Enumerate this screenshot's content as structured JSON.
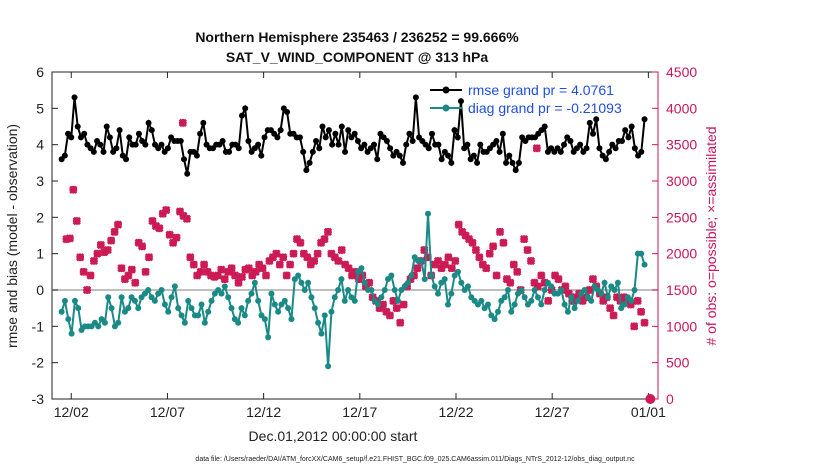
{
  "chart_data": {
    "type": "line",
    "title": "Northern Hemisphere 235463 / 236252 = 99.666%",
    "subtitle": "SAT_V_WIND_COMPONENT @ 313 hPa",
    "xlabel": "Dec.01,2012 00:00:00 start",
    "ylabel": "rmse and bias (model - observation)",
    "ylabel_right": "# of obs: o=possible; ×=assimilated",
    "xlim": [
      0,
      31.5
    ],
    "ylim": [
      -3,
      6
    ],
    "ylim_right": [
      0,
      4500
    ],
    "x_ticks": [
      1,
      6,
      11,
      16,
      21,
      26,
      31
    ],
    "x_tick_labels": [
      "12/02",
      "12/07",
      "12/12",
      "12/17",
      "12/22",
      "12/27",
      "01/01"
    ],
    "y_ticks": [
      -3,
      -2,
      -1,
      0,
      1,
      2,
      3,
      4,
      5,
      6
    ],
    "y_ticks_right": [
      0,
      500,
      1000,
      1500,
      2000,
      2500,
      3000,
      3500,
      4000,
      4500
    ],
    "legend": {
      "position": "top-right",
      "rmse_label": "rmse grand pr = 4.0761",
      "bias_label": "diag grand pr = -0.21093"
    },
    "footer": "data file: /Users/raeder/DAI/ATM_forcXX/CAM6_setup/f.e21.FHIST_BGC.f09_025.CAM6assim.011/Diags_NTrS_2012-12/obs_diag_output.nc",
    "series": [
      {
        "name": "rmse",
        "color": "#000000",
        "values": [
          3.6,
          3.7,
          4.3,
          4.2,
          5.3,
          4.5,
          4.2,
          4.3,
          4.0,
          3.9,
          3.8,
          4.1,
          4.0,
          3.8,
          4.5,
          4.2,
          3.8,
          3.9,
          4.4,
          3.7,
          3.6,
          4.2,
          4.0,
          4.0,
          4.3,
          4.1,
          4.0,
          4.6,
          4.4,
          4.0,
          3.9,
          4.0,
          3.8,
          3.9,
          4.2,
          4.1,
          4.1,
          4.1,
          3.6,
          3.2,
          3.8,
          3.8,
          3.7,
          4.3,
          4.6,
          4.0,
          3.9,
          3.9,
          4.0,
          4.0,
          4.1,
          3.8,
          3.8,
          4.0,
          4.0,
          3.9,
          4.8,
          5.0,
          4.1,
          3.8,
          3.9,
          4.0,
          3.7,
          4.2,
          4.4,
          4.4,
          4.3,
          4.2,
          4.4,
          5.0,
          4.9,
          4.3,
          4.3,
          4.2,
          4.2,
          3.8,
          3.3,
          3.5,
          3.8,
          4.1,
          3.9,
          4.5,
          4.2,
          4.4,
          4.0,
          4.3,
          4.0,
          4.5,
          3.8,
          4.4,
          4.2,
          4.3,
          4.1,
          3.9,
          4.0,
          3.8,
          3.9,
          4.0,
          3.6,
          4.3,
          4.2,
          4.1,
          3.9,
          3.7,
          3.8,
          3.7,
          3.5,
          4.0,
          4.3,
          4.1,
          5.3,
          4.2,
          4.1,
          4.0,
          3.9,
          4.3,
          4.0,
          4.0,
          3.6,
          3.8,
          3.7,
          3.5,
          4.4,
          4.2,
          5.2,
          3.9,
          4.0,
          3.6,
          3.7,
          3.5,
          4.0,
          3.8,
          3.8,
          3.9,
          4.0,
          4.1,
          3.8,
          4.3,
          3.5,
          3.7,
          3.5,
          3.3,
          3.5,
          4.2,
          4.1,
          4.2,
          4.2,
          4.2,
          4.3,
          4.4,
          4.5,
          3.8,
          3.9,
          3.8,
          3.9,
          3.8,
          4.0,
          4.2,
          4.1,
          3.8,
          3.9,
          4.0,
          3.8,
          3.9,
          4.6,
          4.3,
          4.7,
          3.9,
          3.7,
          3.6,
          3.8,
          4.0,
          3.9,
          4.1,
          4.1,
          4.4,
          4.2,
          4.5,
          3.9,
          3.7,
          3.8,
          4.7
        ],
        "comment": "values sampled every 6 hours starting near 12/01 12Z"
      },
      {
        "name": "bias",
        "color": "#1a8a86",
        "values": [
          -0.6,
          -0.3,
          -0.8,
          -1.2,
          -0.3,
          -0.5,
          -1.1,
          -1.0,
          -1.0,
          -1.0,
          -0.9,
          -1.0,
          -0.8,
          -0.9,
          -0.2,
          -0.5,
          -1.0,
          -0.9,
          -0.2,
          -0.6,
          -0.5,
          -0.2,
          -0.3,
          -0.5,
          -0.2,
          -0.1,
          0.0,
          -0.2,
          -0.3,
          -0.1,
          0.0,
          -0.4,
          -0.6,
          -0.2,
          0.1,
          -0.5,
          -0.7,
          -0.9,
          -0.3,
          -0.5,
          -0.7,
          -0.7,
          -0.4,
          -0.9,
          -0.6,
          -0.3,
          -0.1,
          0.0,
          -0.1,
          0.1,
          -0.2,
          -0.5,
          -0.8,
          -0.9,
          -0.5,
          -0.7,
          -0.3,
          -0.1,
          0.2,
          -0.3,
          -0.7,
          -0.8,
          -1.3,
          -0.1,
          -0.4,
          -0.6,
          -0.4,
          -0.3,
          -0.5,
          -0.8,
          0.3,
          0.4,
          0.2,
          0.0,
          0.2,
          -0.2,
          -0.5,
          -0.9,
          -1.2,
          -0.7,
          -2.1,
          -0.6,
          -0.2,
          0.0,
          0.3,
          -0.3,
          0.0,
          -0.2,
          -0.3,
          0.5,
          0.6,
          0.2,
          0.0,
          0.0,
          -0.3,
          -0.4,
          -0.2,
          0.0,
          0.3,
          0.4,
          0.0,
          -0.3,
          0.0,
          0.1,
          0.2,
          0.4,
          0.9,
          0.8,
          0.8,
          0.3,
          2.1,
          0.4,
          0.1,
          -0.1,
          0.2,
          0.3,
          -0.4,
          -0.1,
          0.4,
          0.5,
          0.2,
          0.0,
          0.1,
          -0.2,
          -0.3,
          -0.4,
          -0.3,
          -0.5,
          -0.4,
          -0.7,
          -0.8,
          -0.6,
          -0.3,
          -0.2,
          0.0,
          -0.6,
          -0.4,
          -0.1,
          0.0,
          -0.2,
          -0.4,
          -0.3,
          0.0,
          -0.2,
          -0.4,
          0.0,
          0.2,
          0.1,
          -0.1,
          -0.1,
          0.0,
          -0.4,
          -0.6,
          -0.2,
          -0.5,
          -0.3,
          -0.1,
          0.0,
          -0.2,
          -0.3,
          0.1,
          0.0,
          -0.1,
          0.2,
          -0.2,
          0.1,
          0.0,
          0.2,
          -0.5,
          -0.4,
          -0.2,
          -0.3,
          0.0,
          1.0,
          1.0,
          0.7
        ]
      },
      {
        "name": "assimilated obs count",
        "color": "#cc1a55",
        "marker": "x",
        "x_start": 0.75,
        "values": [
          2200,
          2210,
          2880,
          2450,
          1950,
          1750,
          1500,
          1700,
          1900,
          2000,
          2120,
          2020,
          2050,
          2180,
          2300,
          2400,
          1800,
          1650,
          1700,
          1780,
          1600,
          2150,
          2100,
          1750,
          1950,
          2450,
          2380,
          2350,
          2550,
          2600,
          2260,
          2150,
          2220,
          2580,
          2520,
          2480,
          1950,
          1850,
          1700,
          1750,
          1850,
          1750,
          1700,
          1680,
          1700,
          1780,
          1650,
          1750,
          1800,
          1700,
          1600,
          1680,
          1780,
          1800,
          1700,
          1750,
          1850,
          1800,
          1700,
          1900,
          1950,
          2000,
          1850,
          1950,
          1700,
          1850,
          2000,
          2200,
          2150,
          2000,
          1950,
          1850,
          1900,
          2000,
          2150,
          2200,
          2300,
          2000,
          1950,
          1900,
          2050,
          1850,
          1800,
          1700,
          1750,
          1650,
          1700,
          1550,
          1600,
          1400,
          1350,
          1250,
          1300,
          1200,
          1150,
          1350,
          1250,
          1050,
          1300,
          1550,
          1650,
          1700,
          1800,
          1900,
          2050,
          1950,
          1700,
          1850,
          1900,
          1800,
          1850,
          1950,
          1800,
          1900,
          2400,
          2300,
          2250,
          2200,
          2150,
          2050,
          1950,
          1850,
          1800,
          2000,
          2100,
          1700,
          2300,
          2150,
          1650,
          1600,
          1850,
          1750,
          1500,
          2200,
          2050,
          1900,
          1600,
          1550,
          1700,
          1600,
          1350,
          1500,
          1700,
          1650,
          1500,
          1550,
          1450,
          1350,
          1400,
          1450,
          1350,
          1400,
          1500,
          1650,
          1550,
          1450,
          1350,
          1400,
          1250,
          1150,
          1400,
          1350,
          1400,
          1350,
          1300,
          1000,
          1350,
          1200,
          1050
        ]
      }
    ],
    "outlier_points": [
      {
        "series": "assimilated obs count",
        "x": 6.8,
        "value": 3800
      },
      {
        "series": "assimilated obs count",
        "x": 25.2,
        "value": 3450
      },
      {
        "series": "possible obs count",
        "x": 31.1,
        "value": 0
      }
    ]
  }
}
